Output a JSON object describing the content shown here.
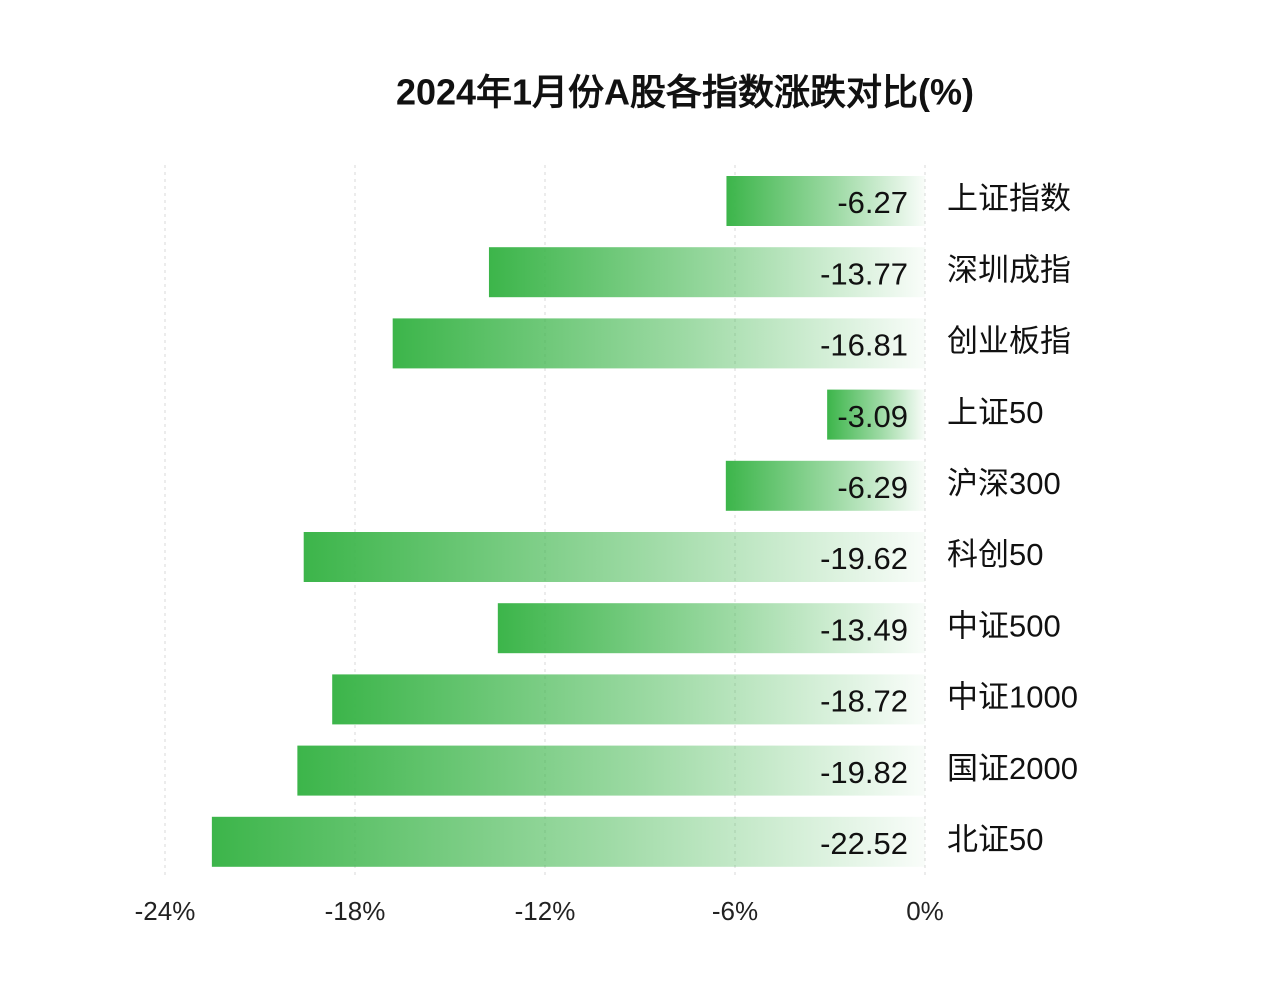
{
  "chart_data": {
    "type": "bar",
    "orientation": "horizontal",
    "title": "2024年1月份A股各指数涨跌对比(%)",
    "categories": [
      "上证指数",
      "深圳成指",
      "创业板指",
      "上证50",
      "沪深300",
      "科创50",
      "中证500",
      "中证1000",
      "国证2000",
      "北证50"
    ],
    "values": [
      -6.27,
      -13.77,
      -16.81,
      -3.09,
      -6.29,
      -19.62,
      -13.49,
      -18.72,
      -19.82,
      -22.52
    ],
    "color": "#3cb54a",
    "xlim": [
      -24,
      0
    ],
    "xticks": [
      {
        "value": -24,
        "label": "-24%"
      },
      {
        "value": -18,
        "label": "-18%"
      },
      {
        "value": -12,
        "label": "-12%"
      },
      {
        "value": -6,
        "label": "-6%"
      },
      {
        "value": 0,
        "label": "0%"
      }
    ],
    "grid": true
  }
}
